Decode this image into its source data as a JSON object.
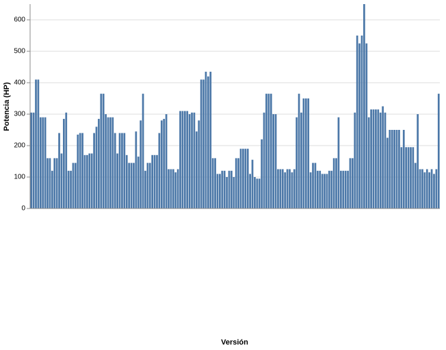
{
  "chart_data": {
    "type": "bar",
    "x_label": "Versión",
    "y_label": "Potencia (HP)",
    "categories": [
      null,
      null,
      null,
      null,
      null,
      null,
      null,
      null,
      null,
      null,
      null,
      null,
      null,
      null,
      null,
      null,
      null,
      null,
      null,
      null,
      null,
      null,
      null,
      null,
      null,
      null,
      null,
      null,
      null,
      null,
      null,
      null,
      null,
      null,
      null,
      null,
      null,
      null,
      null,
      null,
      null,
      null,
      null,
      null,
      null,
      null,
      null,
      null,
      null,
      null,
      null,
      null,
      null,
      null,
      null,
      null,
      null,
      null,
      null,
      null,
      null,
      null,
      null,
      null,
      null,
      null,
      null,
      null,
      null,
      null,
      null,
      null,
      null,
      null,
      null,
      null,
      null,
      null,
      null,
      null,
      null,
      null,
      null,
      null,
      null,
      null,
      null,
      null,
      null,
      null,
      null,
      null,
      null,
      null,
      null,
      null,
      null,
      null,
      null,
      null,
      null,
      null,
      null,
      null,
      null,
      null,
      null,
      null,
      null,
      null,
      null,
      null,
      null,
      null,
      null,
      null,
      null,
      null,
      null,
      null,
      null,
      null,
      null,
      null,
      null,
      null,
      null,
      null,
      null,
      null,
      null,
      null,
      null,
      null,
      null,
      null,
      null,
      null,
      null,
      null,
      null,
      null,
      null,
      null,
      null,
      null,
      null,
      null,
      null,
      null,
      null,
      null,
      null,
      null,
      null,
      null,
      null,
      null,
      null,
      null,
      null,
      null,
      null,
      null,
      null,
      null,
      null,
      null,
      null,
      null,
      null,
      null,
      null,
      null,
      null,
      null
    ],
    "values": [
      305,
      305,
      410,
      410,
      290,
      290,
      290,
      160,
      160,
      120,
      160,
      160,
      240,
      175,
      285,
      305,
      120,
      120,
      145,
      145,
      235,
      240,
      240,
      170,
      170,
      175,
      175,
      240,
      260,
      285,
      365,
      365,
      300,
      290,
      290,
      290,
      240,
      175,
      240,
      240,
      240,
      170,
      145,
      145,
      145,
      245,
      165,
      280,
      365,
      120,
      145,
      145,
      170,
      170,
      170,
      240,
      280,
      285,
      300,
      125,
      125,
      125,
      115,
      125,
      310,
      310,
      310,
      310,
      300,
      305,
      305,
      245,
      280,
      410,
      410,
      435,
      420,
      435,
      160,
      160,
      110,
      110,
      120,
      120,
      100,
      120,
      120,
      100,
      160,
      160,
      190,
      190,
      190,
      190,
      110,
      155,
      100,
      95,
      95,
      220,
      305,
      365,
      365,
      365,
      300,
      300,
      125,
      125,
      125,
      115,
      125,
      125,
      115,
      125,
      290,
      365,
      305,
      350,
      350,
      350,
      115,
      145,
      145,
      120,
      120,
      110,
      110,
      110,
      120,
      120,
      160,
      160,
      290,
      120,
      120,
      120,
      120,
      160,
      160,
      305,
      550,
      525,
      550,
      650,
      525,
      290,
      315,
      315,
      315,
      315,
      305,
      325,
      305,
      225,
      250,
      250,
      250,
      250,
      250,
      195,
      250,
      195,
      195,
      195,
      195,
      145,
      300,
      125,
      125,
      115,
      125,
      115,
      125,
      110,
      125,
      365
    ],
    "color": "#4c78a8",
    "ylim": [
      0,
      650
    ],
    "yticks": [
      0,
      100,
      200,
      300,
      400,
      500,
      600
    ],
    "grid": true
  }
}
